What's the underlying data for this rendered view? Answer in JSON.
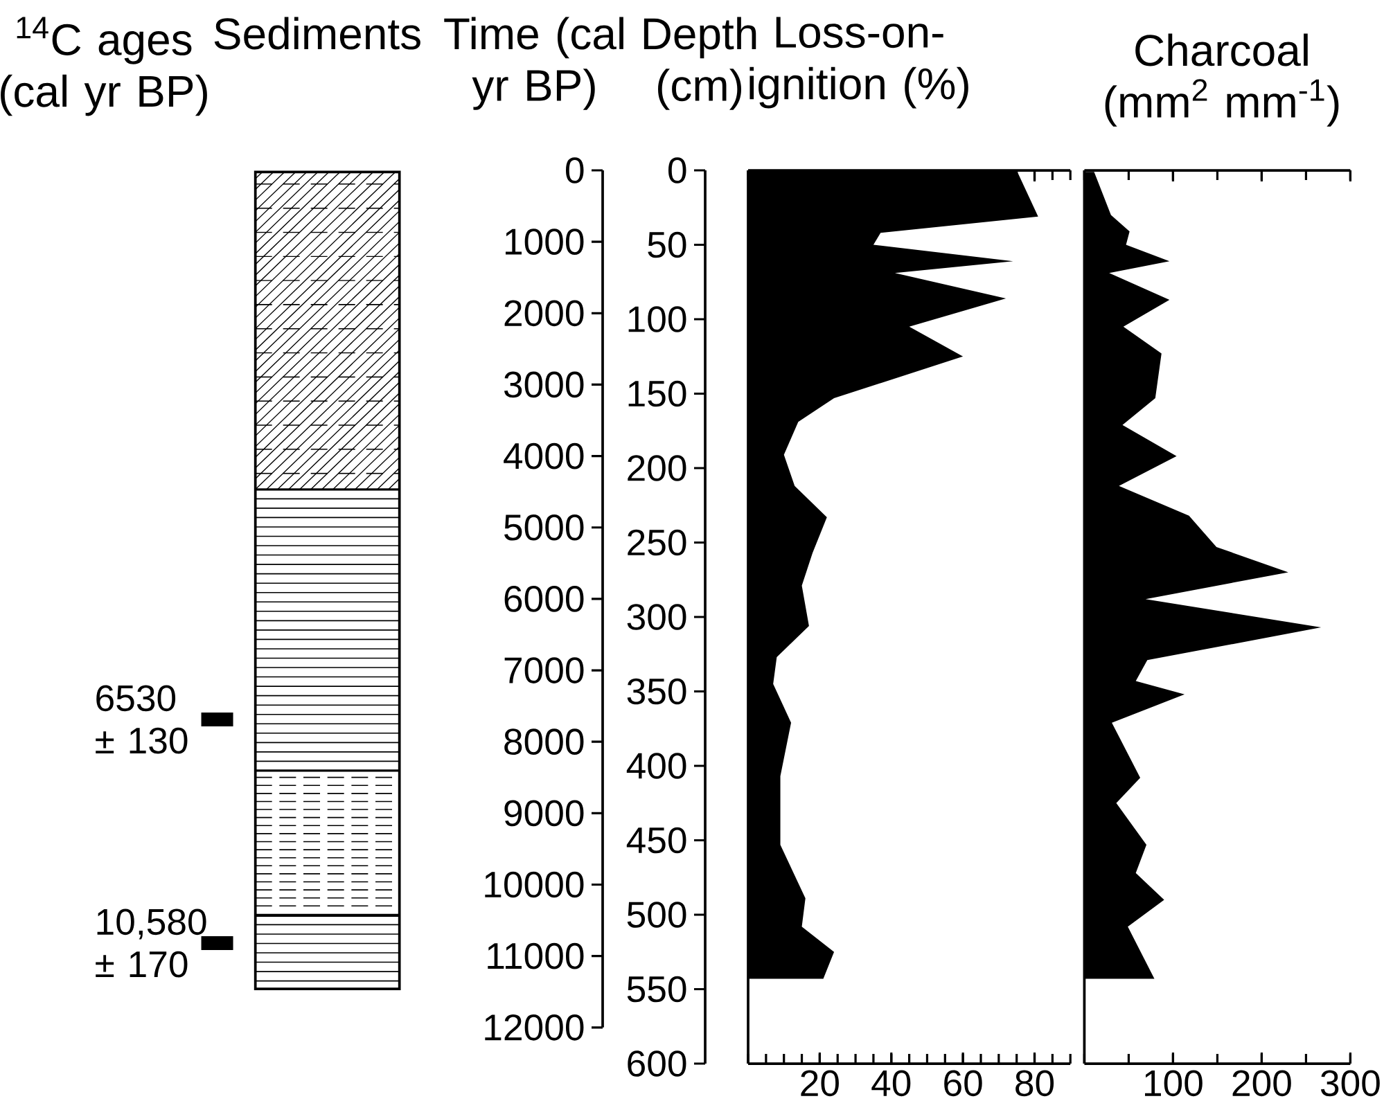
{
  "chart_data": [
    {
      "type": "area",
      "orientation": "horizontal",
      "xlabel": "Loss-on-ignition (%)",
      "ylabel": "Depth (cm)",
      "y2label": "Time (cal yr BP)",
      "color": "#000000",
      "x": [
        0,
        31,
        42,
        50,
        61,
        69,
        86,
        105,
        125,
        153,
        169,
        191,
        212,
        233,
        257,
        279,
        306,
        327,
        345,
        371,
        407,
        453,
        489,
        508,
        525,
        543
      ],
      "values": [
        75,
        81,
        37,
        35,
        74,
        41,
        72,
        45,
        60,
        24,
        14,
        10,
        13,
        22,
        18,
        15,
        17,
        8,
        7,
        12,
        9,
        9,
        16,
        15,
        24,
        21
      ],
      "xlim": [
        0,
        90
      ],
      "xticks": [
        20,
        40,
        60,
        80
      ],
      "ylim": [
        600,
        0
      ],
      "yticks": [
        0,
        50,
        100,
        150,
        200,
        250,
        300,
        350,
        400,
        450,
        500,
        550,
        600
      ],
      "y2lim": [
        12000,
        0
      ],
      "y2ticks": [
        0,
        1000,
        2000,
        3000,
        4000,
        5000,
        6000,
        7000,
        8000,
        9000,
        10000,
        11000,
        12000
      ],
      "annotations": [
        "$^{14}$C ages (cal yr BP)",
        "Sediments",
        "6530 ± 130",
        "10,580 ± 170"
      ]
    },
    {
      "type": "area",
      "orientation": "horizontal",
      "xlabel": "Charcoal (mm$^{2}$ mm$^{-1}$)",
      "color": "#000000",
      "x": [
        1,
        30,
        41,
        50,
        61,
        69,
        87,
        105,
        123,
        153,
        171,
        192,
        212,
        232,
        253,
        270,
        288,
        307,
        329,
        343,
        352,
        371,
        408,
        425,
        453,
        472,
        490,
        508,
        543
      ],
      "values": [
        11,
        30,
        51,
        47,
        96,
        28,
        96,
        44,
        87,
        80,
        43,
        104,
        39,
        118,
        149,
        230,
        69,
        267,
        71,
        58,
        113,
        31,
        63,
        36,
        70,
        58,
        90,
        49,
        79
      ],
      "xlim": [
        0,
        300
      ],
      "xticks": [
        100,
        200,
        300
      ],
      "ylim": [
        600,
        0
      ],
      "tick_labels": "x"
    }
  ]
}
